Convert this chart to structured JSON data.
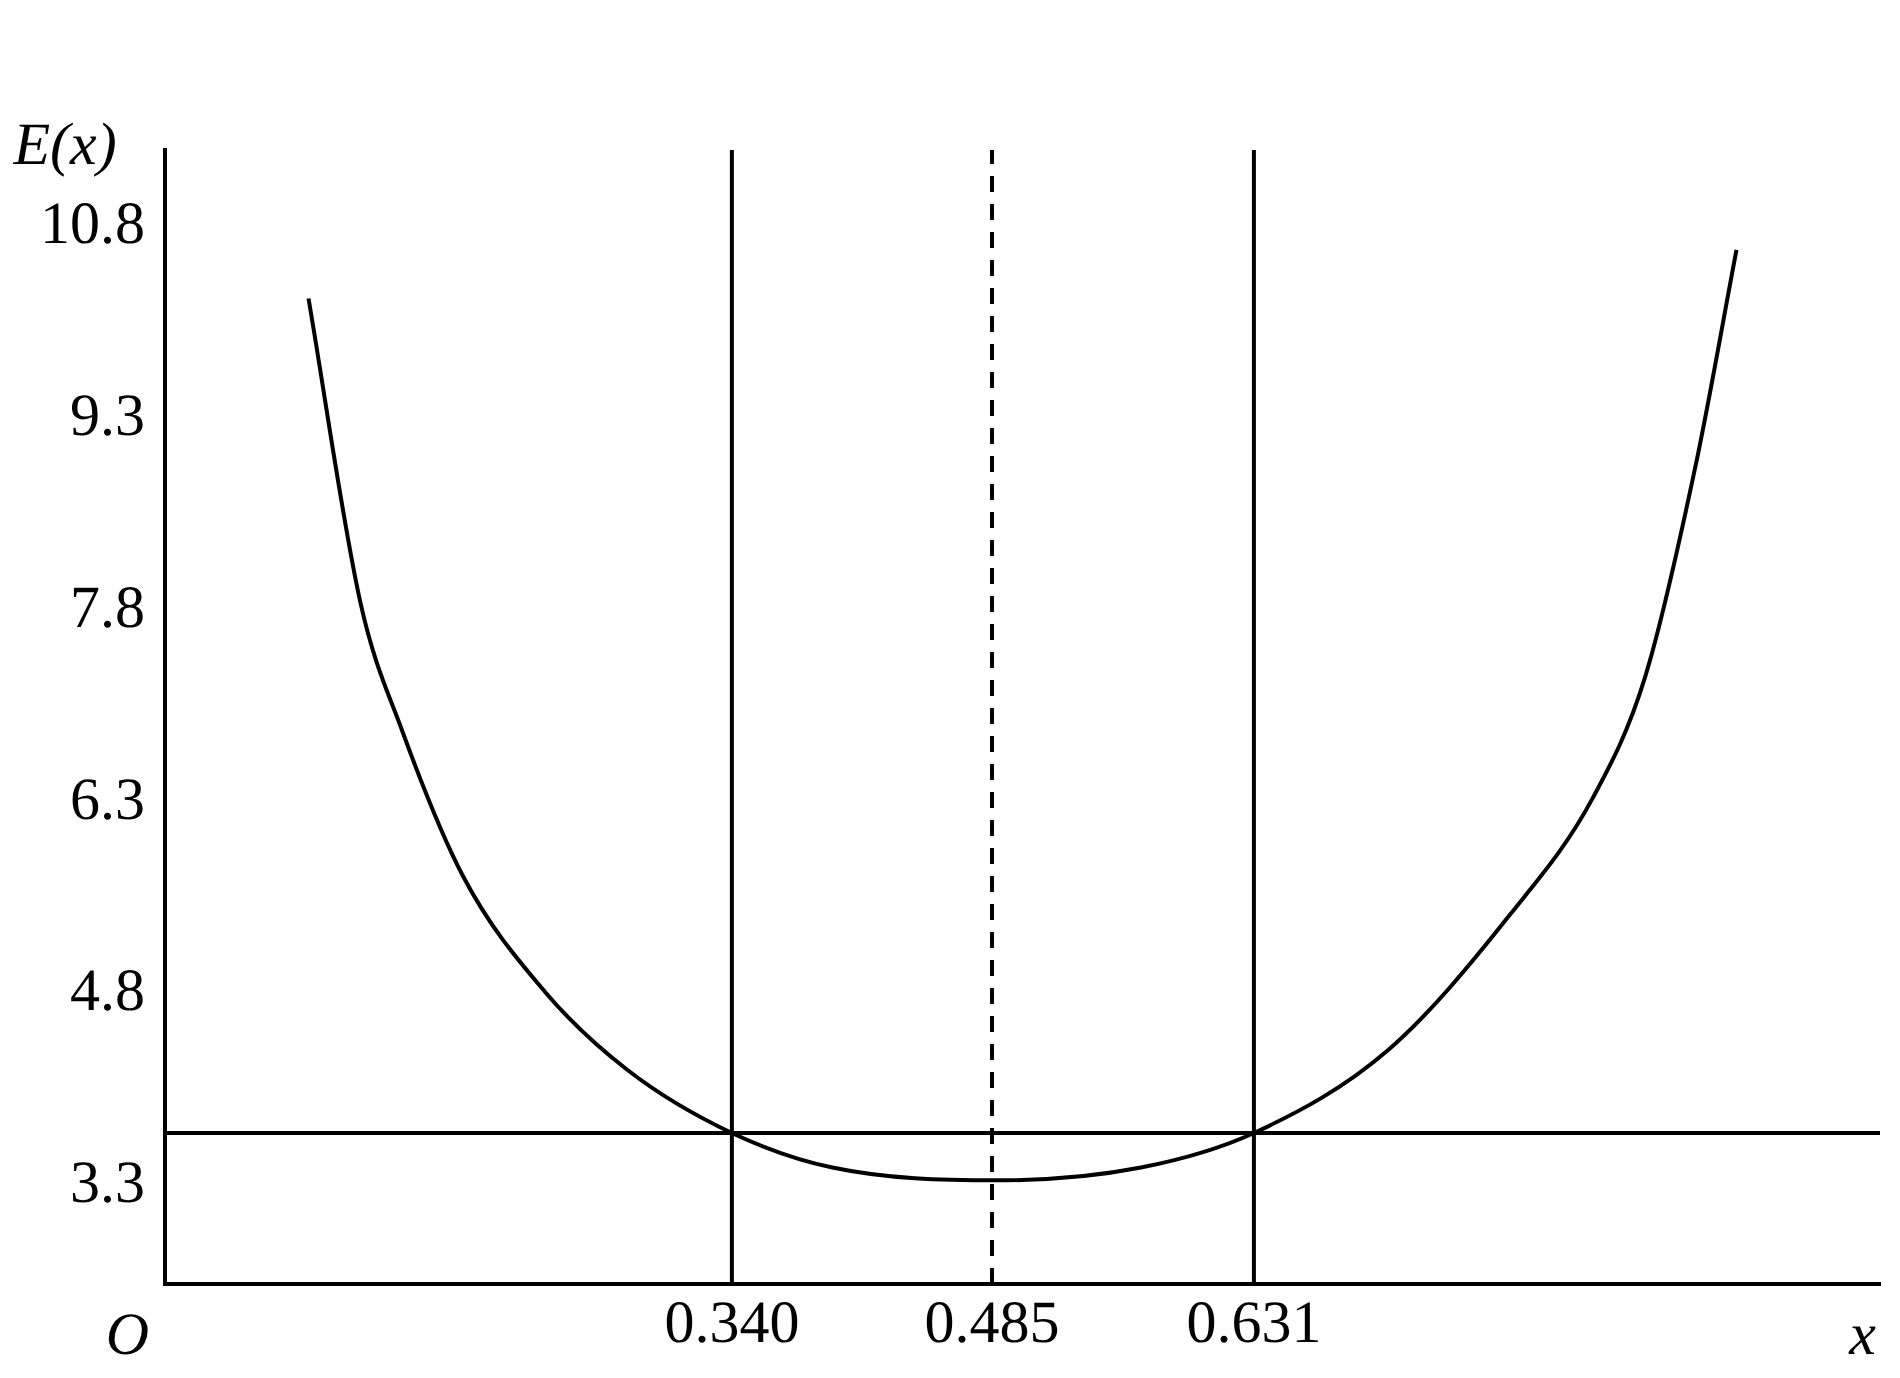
{
  "chart_data": {
    "type": "line",
    "xlabel": "x",
    "ylabel": "E(x)",
    "annotations": [
      "O"
    ],
    "xlim": [
      0.024,
      0.98
    ],
    "ylim": [
      2.54,
      11.4
    ],
    "xticks": [
      {
        "value": 0.34,
        "label": "0.340"
      },
      {
        "value": 0.485,
        "label": "0.485"
      },
      {
        "value": 0.631,
        "label": "0.631"
      }
    ],
    "yticks": [
      3.3,
      4.8,
      6.3,
      7.8,
      9.3,
      10.8
    ],
    "grid": false,
    "legend": false,
    "marker": "none",
    "line_style": "solid",
    "series": [
      {
        "color": "#000000",
        "x": [
          0.104,
          0.133,
          0.156,
          0.19,
          0.236,
          0.282,
          0.34,
          0.396,
          0.488,
          0.568,
          0.631,
          0.706,
          0.774,
          0.82,
          0.849,
          0.877,
          0.9
        ],
        "values": [
          10.24,
          7.86,
          6.87,
          5.73,
          4.82,
          4.21,
          3.72,
          3.45,
          3.35,
          3.45,
          3.72,
          4.37,
          5.43,
          6.34,
          7.28,
          8.92,
          10.62
        ]
      }
    ],
    "ref_lines": [
      {
        "axis": "x",
        "value": 0.34,
        "color": "#000000",
        "line_style": "solid"
      },
      {
        "axis": "x",
        "value": 0.485,
        "color": "#000000",
        "line_style": "dashed"
      },
      {
        "axis": "x",
        "value": 0.631,
        "color": "#000000",
        "line_style": "solid"
      },
      {
        "axis": "y",
        "value": 3.72,
        "color": "#000000",
        "line_style": "solid"
      }
    ]
  }
}
